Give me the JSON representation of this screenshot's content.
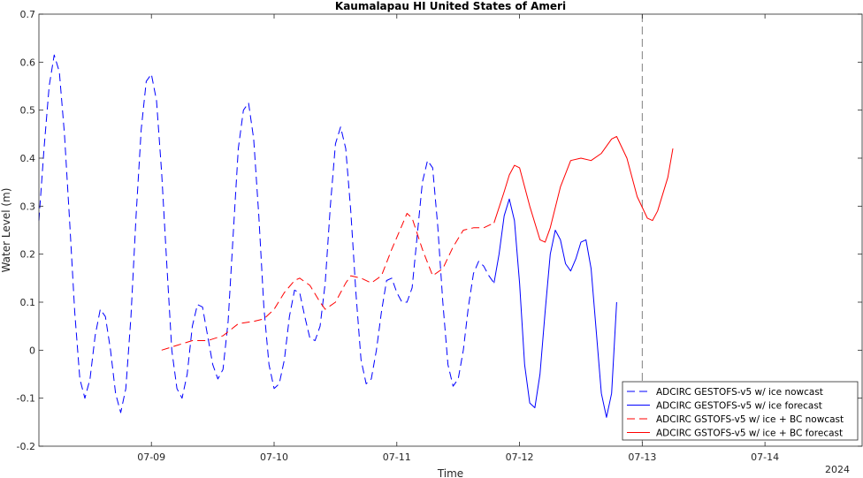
{
  "chart_data": {
    "type": "line",
    "title": "Kaumalapau HI United States of Ameri",
    "xlabel": "Time",
    "ylabel": "Water Level (m)",
    "year_label": "2024",
    "xlim": [
      "2024-07-08 02:00",
      "2024-07-14 19:00"
    ],
    "ylim": [
      -0.2,
      0.7
    ],
    "x_ticks": [
      {
        "t": "2024-07-09 00:00",
        "label": "07-09"
      },
      {
        "t": "2024-07-10 00:00",
        "label": "07-10"
      },
      {
        "t": "2024-07-11 00:00",
        "label": "07-11"
      },
      {
        "t": "2024-07-12 00:00",
        "label": "07-12"
      },
      {
        "t": "2024-07-13 00:00",
        "label": "07-13"
      },
      {
        "t": "2024-07-14 00:00",
        "label": "07-14"
      }
    ],
    "y_ticks": [
      -0.2,
      -0.1,
      0,
      0.1,
      0.2,
      0.3,
      0.4,
      0.5,
      0.6,
      0.7
    ],
    "y_tick_labels": [
      "-0.2",
      "-0.1",
      "0",
      "0.1",
      "0.2",
      "0.3",
      "0.4",
      "0.5",
      "0.6",
      "0.7"
    ],
    "nowcast_forecast_divider": "2024-07-13 00:00",
    "legend_position": "bottom-right",
    "colors": {
      "blue": "#0000ff",
      "red": "#ff0000",
      "axis": "#262626",
      "divider": "#808080"
    },
    "series": [
      {
        "name": "ADCIRC GESTOFS-v5 w/ ice nowcast",
        "color": "#0000ff",
        "dash": true,
        "points": [
          [
            "2024-07-08 02:00",
            0.27
          ],
          [
            "2024-07-08 03:00",
            0.42
          ],
          [
            "2024-07-08 04:00",
            0.55
          ],
          [
            "2024-07-08 05:00",
            0.615
          ],
          [
            "2024-07-08 06:00",
            0.58
          ],
          [
            "2024-07-08 07:00",
            0.45
          ],
          [
            "2024-07-08 08:00",
            0.27
          ],
          [
            "2024-07-08 09:00",
            0.08
          ],
          [
            "2024-07-08 10:00",
            -0.06
          ],
          [
            "2024-07-08 11:00",
            -0.1
          ],
          [
            "2024-07-08 12:00",
            -0.06
          ],
          [
            "2024-07-08 13:00",
            0.03
          ],
          [
            "2024-07-08 14:00",
            0.085
          ],
          [
            "2024-07-08 15:00",
            0.07
          ],
          [
            "2024-07-08 16:00",
            0.0
          ],
          [
            "2024-07-08 17:00",
            -0.09
          ],
          [
            "2024-07-08 18:00",
            -0.13
          ],
          [
            "2024-07-08 19:00",
            -0.08
          ],
          [
            "2024-07-08 20:00",
            0.07
          ],
          [
            "2024-07-08 21:00",
            0.28
          ],
          [
            "2024-07-08 22:00",
            0.46
          ],
          [
            "2024-07-08 23:00",
            0.56
          ],
          [
            "2024-07-09 00:00",
            0.575
          ],
          [
            "2024-07-09 01:00",
            0.52
          ],
          [
            "2024-07-09 02:00",
            0.37
          ],
          [
            "2024-07-09 03:00",
            0.18
          ],
          [
            "2024-07-09 04:00",
            0.0
          ],
          [
            "2024-07-09 05:00",
            -0.08
          ],
          [
            "2024-07-09 06:00",
            -0.1
          ],
          [
            "2024-07-09 07:00",
            -0.05
          ],
          [
            "2024-07-09 08:00",
            0.05
          ],
          [
            "2024-07-09 09:00",
            0.095
          ],
          [
            "2024-07-09 10:00",
            0.09
          ],
          [
            "2024-07-09 11:00",
            0.03
          ],
          [
            "2024-07-09 12:00",
            -0.03
          ],
          [
            "2024-07-09 13:00",
            -0.06
          ],
          [
            "2024-07-09 14:00",
            -0.04
          ],
          [
            "2024-07-09 15:00",
            0.06
          ],
          [
            "2024-07-09 16:00",
            0.24
          ],
          [
            "2024-07-09 17:00",
            0.42
          ],
          [
            "2024-07-09 18:00",
            0.5
          ],
          [
            "2024-07-09 19:00",
            0.515
          ],
          [
            "2024-07-09 20:00",
            0.44
          ],
          [
            "2024-07-09 21:00",
            0.28
          ],
          [
            "2024-07-09 22:00",
            0.09
          ],
          [
            "2024-07-09 23:00",
            -0.03
          ],
          [
            "2024-07-10 00:00",
            -0.08
          ],
          [
            "2024-07-10 01:00",
            -0.07
          ],
          [
            "2024-07-10 02:00",
            -0.02
          ],
          [
            "2024-07-10 03:00",
            0.07
          ],
          [
            "2024-07-10 04:00",
            0.125
          ],
          [
            "2024-07-10 05:00",
            0.12
          ],
          [
            "2024-07-10 06:00",
            0.07
          ],
          [
            "2024-07-10 07:00",
            0.025
          ],
          [
            "2024-07-10 08:00",
            0.02
          ],
          [
            "2024-07-10 09:00",
            0.05
          ],
          [
            "2024-07-10 10:00",
            0.14
          ],
          [
            "2024-07-10 11:00",
            0.3
          ],
          [
            "2024-07-10 12:00",
            0.43
          ],
          [
            "2024-07-10 13:00",
            0.465
          ],
          [
            "2024-07-10 14:00",
            0.42
          ],
          [
            "2024-07-10 15:00",
            0.29
          ],
          [
            "2024-07-10 16:00",
            0.12
          ],
          [
            "2024-07-10 17:00",
            -0.02
          ],
          [
            "2024-07-10 18:00",
            -0.07
          ],
          [
            "2024-07-10 19:00",
            -0.06
          ],
          [
            "2024-07-10 20:00",
            0.0
          ],
          [
            "2024-07-10 21:00",
            0.08
          ],
          [
            "2024-07-10 22:00",
            0.145
          ],
          [
            "2024-07-10 23:00",
            0.15
          ],
          [
            "2024-07-11 00:00",
            0.12
          ],
          [
            "2024-07-11 01:00",
            0.1
          ],
          [
            "2024-07-11 02:00",
            0.1
          ],
          [
            "2024-07-11 03:00",
            0.13
          ],
          [
            "2024-07-11 04:00",
            0.24
          ],
          [
            "2024-07-11 05:00",
            0.35
          ],
          [
            "2024-07-11 06:00",
            0.395
          ],
          [
            "2024-07-11 07:00",
            0.38
          ],
          [
            "2024-07-11 08:00",
            0.26
          ],
          [
            "2024-07-11 09:00",
            0.1
          ],
          [
            "2024-07-11 10:00",
            -0.03
          ],
          [
            "2024-07-11 11:00",
            -0.075
          ],
          [
            "2024-07-11 12:00",
            -0.06
          ],
          [
            "2024-07-11 13:00",
            0.0
          ],
          [
            "2024-07-11 14:00",
            0.09
          ],
          [
            "2024-07-11 15:00",
            0.16
          ],
          [
            "2024-07-11 16:00",
            0.185
          ],
          [
            "2024-07-11 17:00",
            0.175
          ],
          [
            "2024-07-11 18:00",
            0.155
          ],
          [
            "2024-07-11 19:00",
            0.14
          ]
        ]
      },
      {
        "name": "ADCIRC GESTOFS-v5 w/ ice forecast",
        "color": "#0000ff",
        "dash": false,
        "points": [
          [
            "2024-07-11 19:00",
            0.14
          ],
          [
            "2024-07-11 20:00",
            0.2
          ],
          [
            "2024-07-11 21:00",
            0.28
          ],
          [
            "2024-07-11 22:00",
            0.315
          ],
          [
            "2024-07-11 23:00",
            0.27
          ],
          [
            "2024-07-12 00:00",
            0.14
          ],
          [
            "2024-07-12 01:00",
            -0.03
          ],
          [
            "2024-07-12 02:00",
            -0.11
          ],
          [
            "2024-07-12 03:00",
            -0.12
          ],
          [
            "2024-07-12 04:00",
            -0.05
          ],
          [
            "2024-07-12 05:00",
            0.08
          ],
          [
            "2024-07-12 06:00",
            0.2
          ],
          [
            "2024-07-12 07:00",
            0.25
          ],
          [
            "2024-07-12 08:00",
            0.23
          ],
          [
            "2024-07-12 09:00",
            0.18
          ],
          [
            "2024-07-12 10:00",
            0.165
          ],
          [
            "2024-07-12 11:00",
            0.19
          ],
          [
            "2024-07-12 12:00",
            0.225
          ],
          [
            "2024-07-12 13:00",
            0.23
          ],
          [
            "2024-07-12 14:00",
            0.17
          ],
          [
            "2024-07-12 15:00",
            0.04
          ],
          [
            "2024-07-12 16:00",
            -0.09
          ],
          [
            "2024-07-12 17:00",
            -0.14
          ],
          [
            "2024-07-12 18:00",
            -0.09
          ],
          [
            "2024-07-12 19:00",
            0.1
          ]
        ]
      },
      {
        "name": "ADCIRC GSTOFS-v5 w/ ice + BC nowcast",
        "color": "#ff0000",
        "dash": true,
        "points": [
          [
            "2024-07-09 02:00",
            0.0
          ],
          [
            "2024-07-09 05:00",
            0.01
          ],
          [
            "2024-07-09 08:00",
            0.02
          ],
          [
            "2024-07-09 11:00",
            0.02
          ],
          [
            "2024-07-09 14:00",
            0.03
          ],
          [
            "2024-07-09 17:00",
            0.055
          ],
          [
            "2024-07-09 20:00",
            0.06
          ],
          [
            "2024-07-09 22:00",
            0.065
          ],
          [
            "2024-07-10 00:00",
            0.085
          ],
          [
            "2024-07-10 02:00",
            0.12
          ],
          [
            "2024-07-10 04:00",
            0.145
          ],
          [
            "2024-07-10 05:00",
            0.15
          ],
          [
            "2024-07-10 07:00",
            0.135
          ],
          [
            "2024-07-10 09:00",
            0.1
          ],
          [
            "2024-07-10 10:00",
            0.085
          ],
          [
            "2024-07-10 12:00",
            0.1
          ],
          [
            "2024-07-10 14:00",
            0.14
          ],
          [
            "2024-07-10 15:00",
            0.155
          ],
          [
            "2024-07-10 17:00",
            0.15
          ],
          [
            "2024-07-10 19:00",
            0.14
          ],
          [
            "2024-07-10 21:00",
            0.155
          ],
          [
            "2024-07-10 23:00",
            0.21
          ],
          [
            "2024-07-11 01:00",
            0.26
          ],
          [
            "2024-07-11 02:00",
            0.285
          ],
          [
            "2024-07-11 03:00",
            0.275
          ],
          [
            "2024-07-11 05:00",
            0.21
          ],
          [
            "2024-07-11 07:00",
            0.155
          ],
          [
            "2024-07-11 09:00",
            0.17
          ],
          [
            "2024-07-11 11:00",
            0.215
          ],
          [
            "2024-07-11 13:00",
            0.25
          ],
          [
            "2024-07-11 15:00",
            0.255
          ],
          [
            "2024-07-11 17:00",
            0.255
          ],
          [
            "2024-07-11 19:00",
            0.265
          ]
        ]
      },
      {
        "name": "ADCIRC GSTOFS-v5 w/ ice + BC forecast",
        "color": "#ff0000",
        "dash": false,
        "points": [
          [
            "2024-07-11 19:00",
            0.265
          ],
          [
            "2024-07-11 21:00",
            0.33
          ],
          [
            "2024-07-11 22:00",
            0.365
          ],
          [
            "2024-07-11 23:00",
            0.385
          ],
          [
            "2024-07-12 00:00",
            0.38
          ],
          [
            "2024-07-12 02:00",
            0.3
          ],
          [
            "2024-07-12 04:00",
            0.23
          ],
          [
            "2024-07-12 05:00",
            0.225
          ],
          [
            "2024-07-12 06:00",
            0.255
          ],
          [
            "2024-07-12 08:00",
            0.34
          ],
          [
            "2024-07-12 10:00",
            0.395
          ],
          [
            "2024-07-12 12:00",
            0.4
          ],
          [
            "2024-07-12 14:00",
            0.395
          ],
          [
            "2024-07-12 16:00",
            0.41
          ],
          [
            "2024-07-12 18:00",
            0.44
          ],
          [
            "2024-07-12 19:00",
            0.445
          ],
          [
            "2024-07-12 21:00",
            0.4
          ],
          [
            "2024-07-12 23:00",
            0.32
          ],
          [
            "2024-07-13 01:00",
            0.275
          ],
          [
            "2024-07-13 02:00",
            0.27
          ],
          [
            "2024-07-13 03:00",
            0.29
          ],
          [
            "2024-07-13 05:00",
            0.36
          ],
          [
            "2024-07-13 06:00",
            0.42
          ]
        ]
      }
    ]
  }
}
